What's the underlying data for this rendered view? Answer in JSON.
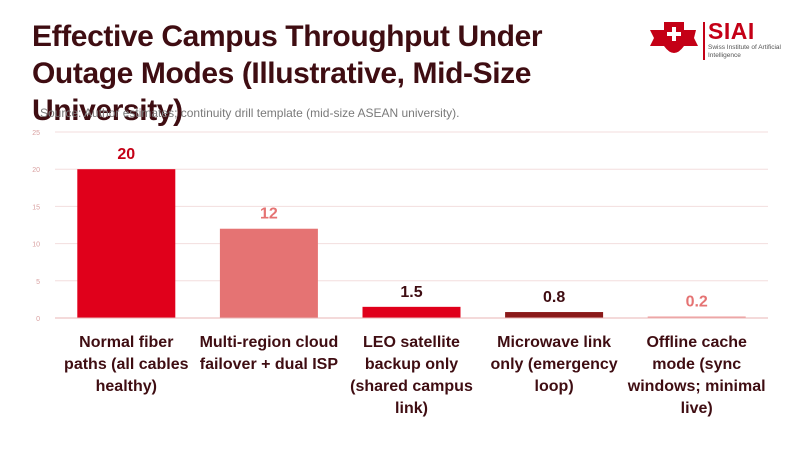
{
  "header": {
    "title": "Effective Campus Throughput Under Outage Modes (Illustrative, Mid-Size University)",
    "source": "Source: Author estimates; continuity drill template (mid-size ASEAN university)."
  },
  "logo": {
    "name": "SIAI",
    "subtitle": "Swiss Institute of Artificial Intelligence"
  },
  "chart_data": {
    "type": "bar",
    "title": "Effective Campus Throughput Under Outage Modes (Illustrative, Mid-Size University)",
    "xlabel": "",
    "ylabel": "",
    "ylim": [
      0,
      25
    ],
    "yticks": [
      0,
      5,
      10,
      15,
      20,
      25
    ],
    "grid": true,
    "categories": [
      "Normal fiber paths (all cables healthy)",
      "Multi-region cloud failover + dual ISP",
      "LEO satellite backup only (shared campus link)",
      "Microwave link only (emergency loop)",
      "Offline cache mode (sync windows; minimal live)"
    ],
    "values": [
      20,
      12,
      1.5,
      0.8,
      0.2
    ],
    "value_labels": [
      "20",
      "12",
      "1.5",
      "0.8",
      "0.2"
    ],
    "colors": [
      "#e0001b",
      "#e57373",
      "#e0001b",
      "#8b1a1a",
      "#ef9a9a"
    ],
    "label_colors": [
      "#c40016",
      "#e57373",
      "#3f0d12",
      "#3f0d12",
      "#e57373"
    ]
  }
}
